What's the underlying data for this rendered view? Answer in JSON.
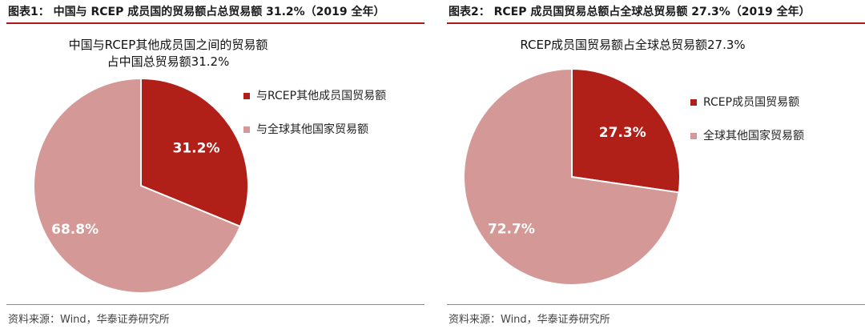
{
  "chart_data": [
    {
      "type": "pie",
      "figure_title": "图表1：  中国与 RCEP 成员国的贸易额占总贸易额 31.2%（2019 全年）",
      "title_lines": [
        "中国与RCEP其他成员国之间的贸易额",
        "占中国总贸易额31.2%"
      ],
      "slices": [
        {
          "label": "与RCEP其他成员国贸易额",
          "value": 31.2,
          "display": "31.2%",
          "color": "#b02018",
          "label_color": "#ffffff"
        },
        {
          "label": "与全球其他国家贸易额",
          "value": 68.8,
          "display": "68.8%",
          "color": "#d49896",
          "label_color": "#ffffff"
        }
      ],
      "legend_position": "right",
      "source": "资料来源：Wind，华泰证券研究所"
    },
    {
      "type": "pie",
      "figure_title": "图表2：  RCEP 成员国贸易总额占全球总贸易额 27.3%（2019 全年）",
      "title_lines": [
        "RCEP成员国贸易额占全球总贸易额27.3%"
      ],
      "slices": [
        {
          "label": "RCEP成员国贸易额",
          "value": 27.3,
          "display": "27.3%",
          "color": "#b02018",
          "label_color": "#ffffff"
        },
        {
          "label": "全球其他国家贸易额",
          "value": 72.7,
          "display": "72.7%",
          "color": "#d49896",
          "label_color": "#ffffff"
        }
      ],
      "legend_position": "right",
      "source": "资料来源：Wind，华泰证券研究所"
    }
  ]
}
